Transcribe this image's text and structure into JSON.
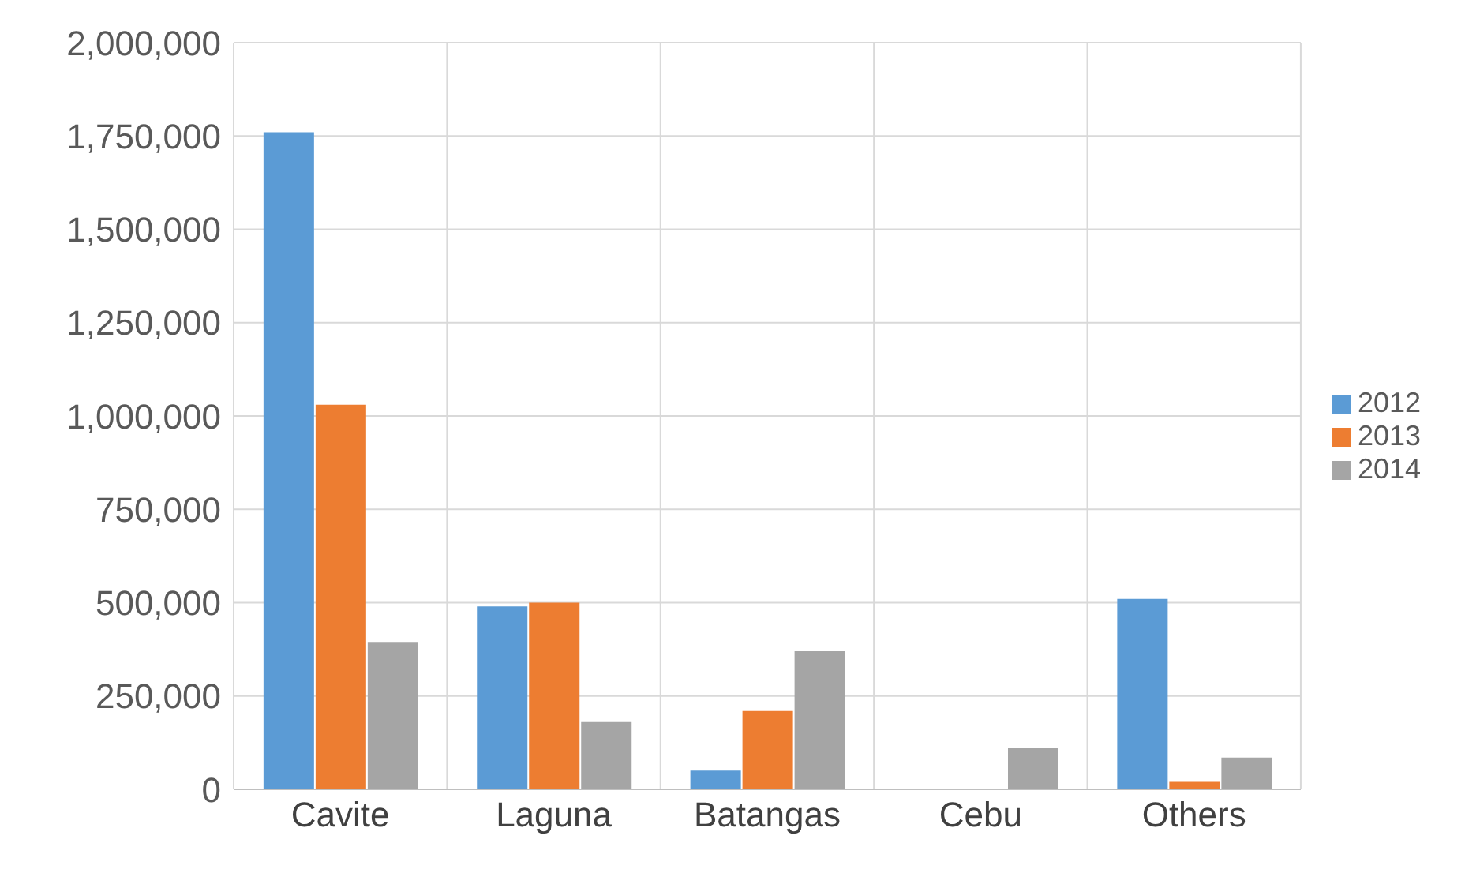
{
  "chart_data": {
    "type": "bar",
    "categories": [
      "Cavite",
      "Laguna",
      "Batangas",
      "Cebu",
      "Others"
    ],
    "series": [
      {
        "name": "2012",
        "color": "#5b9bd5",
        "values": [
          1760000,
          490000,
          50000,
          0,
          510000
        ]
      },
      {
        "name": "2013",
        "color": "#ed7d31",
        "values": [
          1030000,
          500000,
          210000,
          0,
          20000
        ]
      },
      {
        "name": "2014",
        "color": "#a5a5a5",
        "values": [
          395000,
          180000,
          370000,
          110000,
          85000
        ]
      }
    ],
    "ylim": [
      0,
      2000000
    ],
    "yticks": [
      0,
      {
        "value": 250000,
        "label": "250,000"
      },
      {
        "value": 500000,
        "label": "500,000"
      },
      {
        "value": 750000,
        "label": "750,000"
      },
      {
        "value": 1000000,
        "label": "1,000,000"
      },
      {
        "value": 1250000,
        "label": "1,250,000"
      },
      {
        "value": 1500000,
        "label": "1,500,000"
      },
      {
        "value": 1750000,
        "label": "1,750,000"
      },
      {
        "value": 2000000,
        "label": "2,000,000"
      }
    ],
    "grid": true,
    "legend": "right"
  }
}
